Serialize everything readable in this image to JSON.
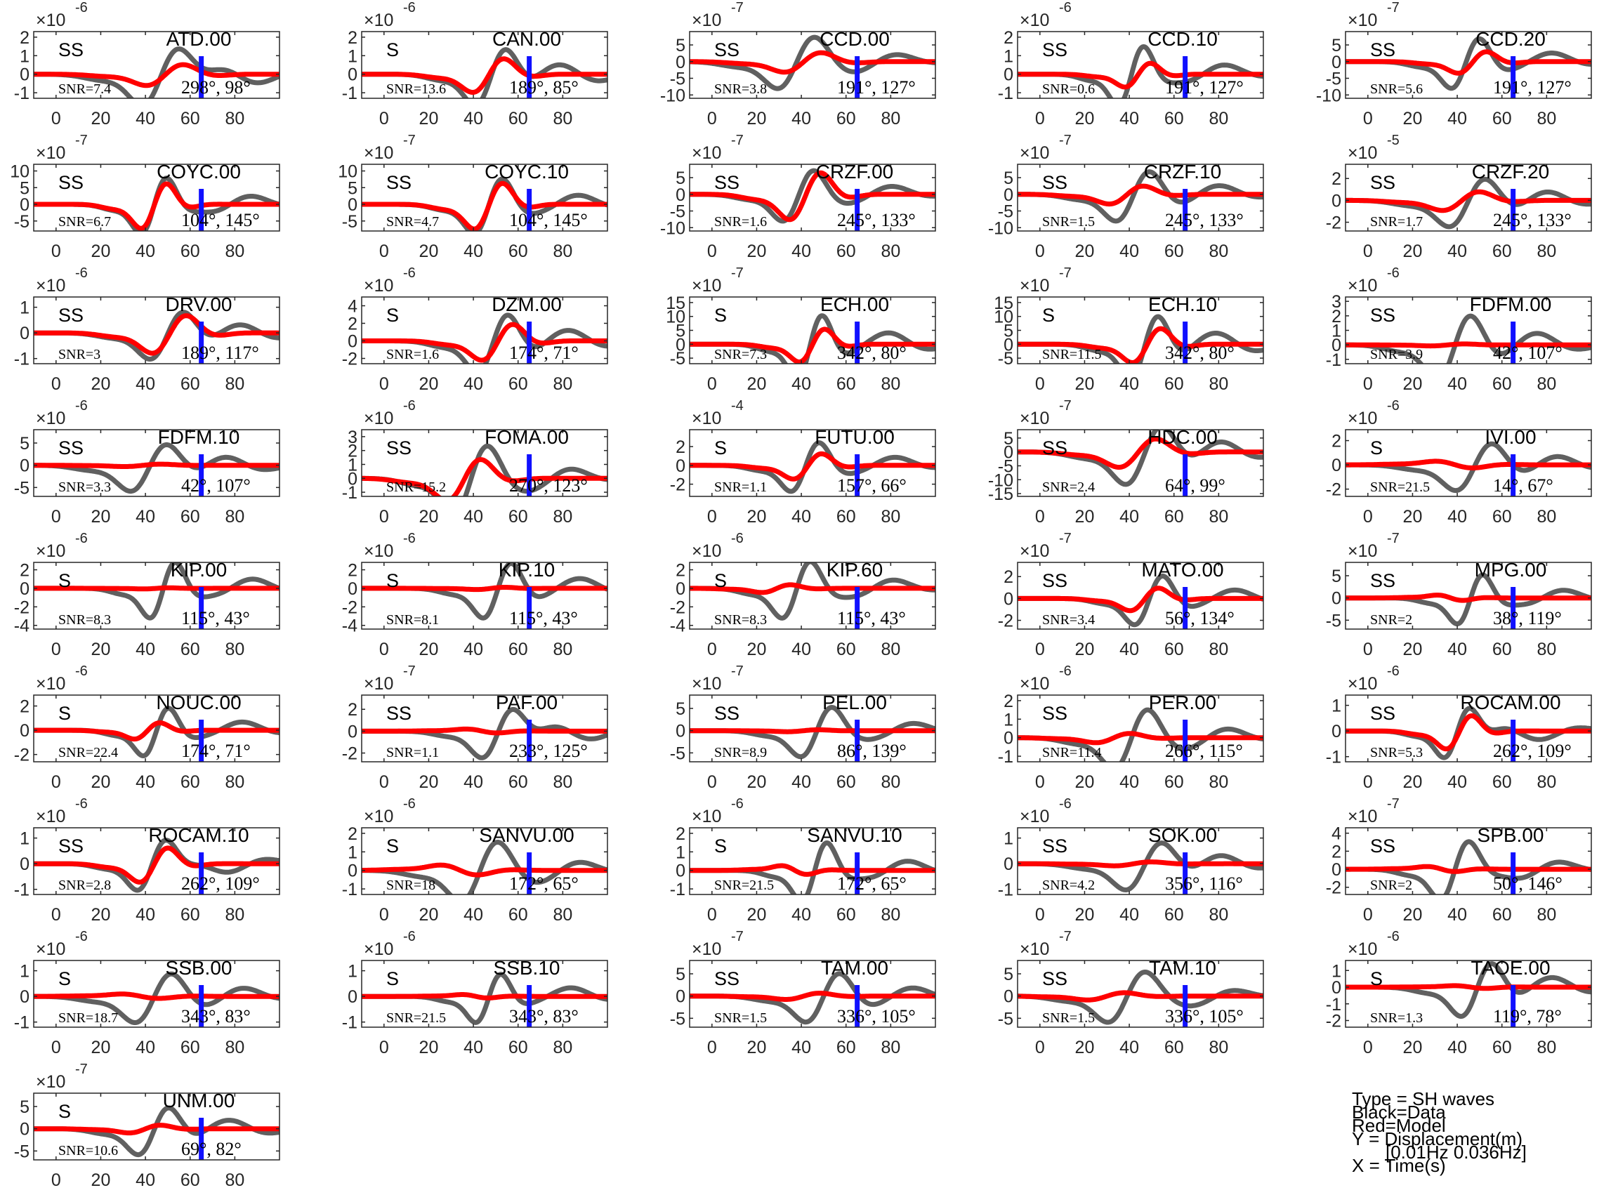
{
  "figure": {
    "x_ticks": [
      0,
      20,
      40,
      60,
      80
    ],
    "colors": {
      "data": "#606060",
      "model": "#ff0000",
      "marker": "#1010ff",
      "axis": "#262626"
    }
  },
  "legend": {
    "type": "Type = SH waves",
    "black": "Black=Data",
    "red": "Red=Model",
    "y": "Y = Displacement(m)",
    "band": "[0.01Hz 0.036Hz]",
    "x": "X = Time(s)"
  },
  "chart_data": [
    {
      "type": "line",
      "station": "ATD.00",
      "phase": "SS",
      "snr": "SNR=7.4",
      "azimuth": "298°, 98°",
      "exponent": "-6",
      "yticks": [
        "2",
        "1",
        "0",
        "-1"
      ],
      "ylim": [
        -1.3,
        2.3
      ],
      "xlim": [
        -10,
        100
      ],
      "marker_x": 65
    },
    {
      "type": "line",
      "station": "CAN.00",
      "phase": "S",
      "snr": "SNR=13.6",
      "azimuth": "189°, 85°",
      "exponent": "-6",
      "yticks": [
        "2",
        "1",
        "0",
        "-1"
      ],
      "ylim": [
        -1.3,
        2.3
      ],
      "xlim": [
        -10,
        100
      ],
      "marker_x": 65
    },
    {
      "type": "line",
      "station": "CCD.00",
      "phase": "SS",
      "snr": "SNR=3.8",
      "azimuth": "191°, 127°",
      "exponent": "-7",
      "yticks": [
        "5",
        "0",
        "-5",
        "-10"
      ],
      "ylim": [
        -11,
        9
      ],
      "xlim": [
        -10,
        100
      ],
      "marker_x": 65
    },
    {
      "type": "line",
      "station": "CCD.10",
      "phase": "SS",
      "snr": "SNR=0.6",
      "azimuth": "191°, 127°",
      "exponent": "-6",
      "yticks": [
        "2",
        "1",
        "0",
        "-1"
      ],
      "ylim": [
        -1.3,
        2.3
      ],
      "xlim": [
        -10,
        100
      ],
      "marker_x": 65
    },
    {
      "type": "line",
      "station": "CCD.20",
      "phase": "SS",
      "snr": "SNR=5.6",
      "azimuth": "191°, 127°",
      "exponent": "-7",
      "yticks": [
        "5",
        "0",
        "-5",
        "-10"
      ],
      "ylim": [
        -11,
        9
      ],
      "xlim": [
        -10,
        100
      ],
      "marker_x": 65
    },
    {
      "type": "line",
      "station": "COYC.00",
      "phase": "SS",
      "snr": "SNR=6.7",
      "azimuth": "104°, 145°",
      "exponent": "-7",
      "yticks": [
        "10",
        "5",
        "0",
        "-5"
      ],
      "ylim": [
        -8,
        12
      ],
      "xlim": [
        -10,
        100
      ],
      "marker_x": 65
    },
    {
      "type": "line",
      "station": "COYC.10",
      "phase": "SS",
      "snr": "SNR=4.7",
      "azimuth": "104°, 145°",
      "exponent": "-7",
      "yticks": [
        "10",
        "5",
        "0",
        "-5"
      ],
      "ylim": [
        -8,
        12
      ],
      "xlim": [
        -10,
        100
      ],
      "marker_x": 65
    },
    {
      "type": "line",
      "station": "CRZF.00",
      "phase": "SS",
      "snr": "SNR=1.6",
      "azimuth": "245°, 133°",
      "exponent": "-7",
      "yticks": [
        "5",
        "0",
        "-5",
        "-10"
      ],
      "ylim": [
        -11,
        9
      ],
      "xlim": [
        -10,
        100
      ],
      "marker_x": 65
    },
    {
      "type": "line",
      "station": "CRZF.10",
      "phase": "SS",
      "snr": "SNR=1.5",
      "azimuth": "245°, 133°",
      "exponent": "-7",
      "yticks": [
        "5",
        "0",
        "-5",
        "-10"
      ],
      "ylim": [
        -11,
        9
      ],
      "xlim": [
        -10,
        100
      ],
      "marker_x": 65
    },
    {
      "type": "line",
      "station": "CRZF.20",
      "phase": "SS",
      "snr": "SNR=1.7",
      "azimuth": "245°, 133°",
      "exponent": "-5",
      "yticks": [
        "2",
        "0",
        "-2"
      ],
      "ylim": [
        -2.8,
        3.3
      ],
      "xlim": [
        -10,
        100
      ],
      "marker_x": 65
    },
    {
      "type": "line",
      "station": "DRV.00",
      "phase": "SS",
      "snr": "SNR=3",
      "azimuth": "189°, 117°",
      "exponent": "-6",
      "yticks": [
        "1",
        "0",
        "-1"
      ],
      "ylim": [
        -1.2,
        1.4
      ],
      "xlim": [
        -10,
        100
      ],
      "marker_x": 65
    },
    {
      "type": "line",
      "station": "DZM.00",
      "phase": "S",
      "snr": "SNR=1.6",
      "azimuth": "174°, 71°",
      "exponent": "-6",
      "yticks": [
        "4",
        "2",
        "0",
        "-2"
      ],
      "ylim": [
        -2.6,
        5
      ],
      "xlim": [
        -10,
        100
      ],
      "marker_x": 65
    },
    {
      "type": "line",
      "station": "ECH.00",
      "phase": "S",
      "snr": "SNR=7.3",
      "azimuth": "342°, 80°",
      "exponent": "-7",
      "yticks": [
        "15",
        "10",
        "5",
        "0",
        "-5"
      ],
      "ylim": [
        -7,
        17
      ],
      "xlim": [
        -10,
        100
      ],
      "marker_x": 65
    },
    {
      "type": "line",
      "station": "ECH.10",
      "phase": "S",
      "snr": "SNR=11.5",
      "azimuth": "342°, 80°",
      "exponent": "-7",
      "yticks": [
        "15",
        "10",
        "5",
        "0",
        "-5"
      ],
      "ylim": [
        -7,
        17
      ],
      "xlim": [
        -10,
        100
      ],
      "marker_x": 65
    },
    {
      "type": "line",
      "station": "FDFM.00",
      "phase": "SS",
      "snr": "SNR=3.9",
      "azimuth": "42°, 107°",
      "exponent": "-6",
      "yticks": [
        "3",
        "2",
        "1",
        "0",
        "-1"
      ],
      "ylim": [
        -1.3,
        3.3
      ],
      "xlim": [
        -10,
        100
      ],
      "marker_x": 65
    },
    {
      "type": "line",
      "station": "FDFM.10",
      "phase": "SS",
      "snr": "SNR=3.3",
      "azimuth": "42°, 107°",
      "exponent": "-6",
      "yticks": [
        "5",
        "0",
        "-5"
      ],
      "ylim": [
        -7,
        8
      ],
      "xlim": [
        -10,
        100
      ],
      "marker_x": 65
    },
    {
      "type": "line",
      "station": "FOMA.00",
      "phase": "SS",
      "snr": "SNR=15.2",
      "azimuth": "270°, 123°",
      "exponent": "-6",
      "yticks": [
        "3",
        "2",
        "1",
        "0",
        "-1"
      ],
      "ylim": [
        -1.3,
        3.5
      ],
      "xlim": [
        -10,
        100
      ],
      "marker_x": 65
    },
    {
      "type": "line",
      "station": "FUTU.00",
      "phase": "S",
      "snr": "SNR=1.1",
      "azimuth": "157°, 66°",
      "exponent": "-4",
      "yticks": [
        "2",
        "0",
        "-2"
      ],
      "ylim": [
        -3.3,
        3.8
      ],
      "xlim": [
        -10,
        100
      ],
      "marker_x": 65
    },
    {
      "type": "line",
      "station": "HDC.00",
      "phase": "SS",
      "snr": "SNR=2.4",
      "azimuth": "64°, 99°",
      "exponent": "-7",
      "yticks": [
        "5",
        "0",
        "-5",
        "-10",
        "-15"
      ],
      "ylim": [
        -16,
        8
      ],
      "xlim": [
        -10,
        100
      ],
      "marker_x": 65
    },
    {
      "type": "line",
      "station": "IVI.00",
      "phase": "S",
      "snr": "SNR=21.5",
      "azimuth": "14°, 67°",
      "exponent": "-6",
      "yticks": [
        "2",
        "0",
        "-2"
      ],
      "ylim": [
        -2.6,
        2.9
      ],
      "xlim": [
        -10,
        100
      ],
      "marker_x": 65
    },
    {
      "type": "line",
      "station": "KIP.00",
      "phase": "S",
      "snr": "SNR=8.3",
      "azimuth": "115°, 43°",
      "exponent": "-6",
      "yticks": [
        "2",
        "0",
        "-2",
        "-4"
      ],
      "ylim": [
        -4.4,
        2.8
      ],
      "xlim": [
        -10,
        100
      ],
      "marker_x": 65
    },
    {
      "type": "line",
      "station": "KIP.10",
      "phase": "S",
      "snr": "SNR=8.1",
      "azimuth": "115°, 43°",
      "exponent": "-6",
      "yticks": [
        "2",
        "0",
        "-2",
        "-4"
      ],
      "ylim": [
        -4.4,
        2.8
      ],
      "xlim": [
        -10,
        100
      ],
      "marker_x": 65
    },
    {
      "type": "line",
      "station": "KIP.60",
      "phase": "S",
      "snr": "SNR=8.3",
      "azimuth": "115°, 43°",
      "exponent": "-6",
      "yticks": [
        "2",
        "0",
        "-2",
        "-4"
      ],
      "ylim": [
        -4.4,
        2.8
      ],
      "xlim": [
        -10,
        100
      ],
      "marker_x": 65
    },
    {
      "type": "line",
      "station": "MATO.00",
      "phase": "SS",
      "snr": "SNR=3.4",
      "azimuth": "56°, 134°",
      "exponent": "-7",
      "yticks": [
        "2",
        "0",
        "-2"
      ],
      "ylim": [
        -2.8,
        3.3
      ],
      "xlim": [
        -10,
        100
      ],
      "marker_x": 65
    },
    {
      "type": "line",
      "station": "MPG.00",
      "phase": "SS",
      "snr": "SNR=2",
      "azimuth": "38°, 119°",
      "exponent": "-7",
      "yticks": [
        "5",
        "0",
        "-5"
      ],
      "ylim": [
        -7,
        8
      ],
      "xlim": [
        -10,
        100
      ],
      "marker_x": 65
    },
    {
      "type": "line",
      "station": "NOUC.00",
      "phase": "S",
      "snr": "SNR=22.4",
      "azimuth": "174°, 71°",
      "exponent": "-6",
      "yticks": [
        "2",
        "0",
        "-2"
      ],
      "ylim": [
        -2.6,
        2.9
      ],
      "xlim": [
        -10,
        100
      ],
      "marker_x": 65
    },
    {
      "type": "line",
      "station": "PAF.00",
      "phase": "SS",
      "snr": "SNR=1.1",
      "azimuth": "233°, 125°",
      "exponent": "-7",
      "yticks": [
        "2",
        "0",
        "-2"
      ],
      "ylim": [
        -2.8,
        3.3
      ],
      "xlim": [
        -10,
        100
      ],
      "marker_x": 65
    },
    {
      "type": "line",
      "station": "PEL.00",
      "phase": "SS",
      "snr": "SNR=8.9",
      "azimuth": "86°, 139°",
      "exponent": "-7",
      "yticks": [
        "5",
        "0",
        "-5"
      ],
      "ylim": [
        -7,
        8
      ],
      "xlim": [
        -10,
        100
      ],
      "marker_x": 65
    },
    {
      "type": "line",
      "station": "PER.00",
      "phase": "SS",
      "snr": "SNR=11.4",
      "azimuth": "266°, 115°",
      "exponent": "-6",
      "yticks": [
        "2",
        "1",
        "0",
        "-1"
      ],
      "ylim": [
        -1.3,
        2.3
      ],
      "xlim": [
        -10,
        100
      ],
      "marker_x": 65
    },
    {
      "type": "line",
      "station": "ROCAM.00",
      "phase": "SS",
      "snr": "SNR=5.3",
      "azimuth": "262°, 109°",
      "exponent": "-6",
      "yticks": [
        "1",
        "0",
        "-1"
      ],
      "ylim": [
        -1.2,
        1.4
      ],
      "xlim": [
        -10,
        100
      ],
      "marker_x": 65
    },
    {
      "type": "line",
      "station": "ROCAM.10",
      "phase": "SS",
      "snr": "SNR=2.8",
      "azimuth": "262°, 109°",
      "exponent": "-6",
      "yticks": [
        "1",
        "0",
        "-1"
      ],
      "ylim": [
        -1.2,
        1.4
      ],
      "xlim": [
        -10,
        100
      ],
      "marker_x": 65
    },
    {
      "type": "line",
      "station": "SANVU.00",
      "phase": "S",
      "snr": "SNR=18",
      "azimuth": "172°, 65°",
      "exponent": "-6",
      "yticks": [
        "2",
        "1",
        "0",
        "-1"
      ],
      "ylim": [
        -1.3,
        2.3
      ],
      "xlim": [
        -10,
        100
      ],
      "marker_x": 65
    },
    {
      "type": "line",
      "station": "SANVU.10",
      "phase": "S",
      "snr": "SNR=21.5",
      "azimuth": "172°, 65°",
      "exponent": "-6",
      "yticks": [
        "2",
        "1",
        "0",
        "-1"
      ],
      "ylim": [
        -1.3,
        2.3
      ],
      "xlim": [
        -10,
        100
      ],
      "marker_x": 65
    },
    {
      "type": "line",
      "station": "SOK.00",
      "phase": "SS",
      "snr": "SNR=4.2",
      "azimuth": "356°, 116°",
      "exponent": "-6",
      "yticks": [
        "1",
        "0",
        "-1"
      ],
      "ylim": [
        -1.2,
        1.4
      ],
      "xlim": [
        -10,
        100
      ],
      "marker_x": 65
    },
    {
      "type": "line",
      "station": "SPB.00",
      "phase": "SS",
      "snr": "SNR=2",
      "azimuth": "50°, 146°",
      "exponent": "-7",
      "yticks": [
        "4",
        "2",
        "0",
        "-2"
      ],
      "ylim": [
        -2.8,
        4.6
      ],
      "xlim": [
        -10,
        100
      ],
      "marker_x": 65
    },
    {
      "type": "line",
      "station": "SSB.00",
      "phase": "S",
      "snr": "SNR=18.7",
      "azimuth": "343°, 83°",
      "exponent": "-6",
      "yticks": [
        "1",
        "0",
        "-1"
      ],
      "ylim": [
        -1.2,
        1.4
      ],
      "xlim": [
        -10,
        100
      ],
      "marker_x": 65
    },
    {
      "type": "line",
      "station": "SSB.10",
      "phase": "S",
      "snr": "SNR=21.5",
      "azimuth": "343°, 83°",
      "exponent": "-6",
      "yticks": [
        "1",
        "0",
        "-1"
      ],
      "ylim": [
        -1.2,
        1.4
      ],
      "xlim": [
        -10,
        100
      ],
      "marker_x": 65
    },
    {
      "type": "line",
      "station": "TAM.00",
      "phase": "SS",
      "snr": "SNR=1.5",
      "azimuth": "336°, 105°",
      "exponent": "-7",
      "yticks": [
        "5",
        "0",
        "-5"
      ],
      "ylim": [
        -7,
        8
      ],
      "xlim": [
        -10,
        100
      ],
      "marker_x": 65
    },
    {
      "type": "line",
      "station": "TAM.10",
      "phase": "SS",
      "snr": "SNR=1.5",
      "azimuth": "336°, 105°",
      "exponent": "-7",
      "yticks": [
        "5",
        "0",
        "-5"
      ],
      "ylim": [
        -7,
        8
      ],
      "xlim": [
        -10,
        100
      ],
      "marker_x": 65
    },
    {
      "type": "line",
      "station": "TAOE.00",
      "phase": "S",
      "snr": "SNR=1.3",
      "azimuth": "119°, 78°",
      "exponent": "-6",
      "yticks": [
        "1",
        "0",
        "-1",
        "-2"
      ],
      "ylim": [
        -2.4,
        1.6
      ],
      "xlim": [
        -10,
        100
      ],
      "marker_x": 65
    },
    {
      "type": "line",
      "station": "UNM.00",
      "phase": "S",
      "snr": "SNR=10.6",
      "azimuth": "69°, 82°",
      "exponent": "-7",
      "yticks": [
        "5",
        "0",
        "-5"
      ],
      "ylim": [
        -7,
        8
      ],
      "xlim": [
        -10,
        100
      ],
      "marker_x": 65
    }
  ]
}
